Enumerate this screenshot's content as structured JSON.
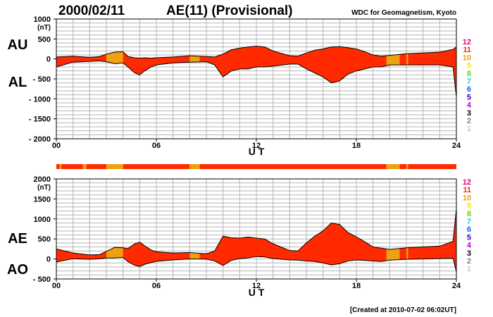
{
  "header": {
    "date": "2000/02/11",
    "title": "AE(11) (Provisional)",
    "source": "WDC for Geomagnetism, Kyoto"
  },
  "footer": {
    "created": "[Created at 2010-07-02 06:02UT]"
  },
  "colors": {
    "primary": "#ff2a00",
    "secondary": "#f0a010",
    "line": "#000000",
    "grid": "#b4b4b4"
  },
  "legend": {
    "items": [
      {
        "label": "12",
        "color": "#e0007a"
      },
      {
        "label": "11",
        "color": "#ff2a00"
      },
      {
        "label": "10",
        "color": "#f0a010"
      },
      {
        "label": "9",
        "color": "#f0f000"
      },
      {
        "label": "8",
        "color": "#5ae000"
      },
      {
        "label": "7",
        "color": "#00d8e8"
      },
      {
        "label": "6",
        "color": "#0064ff"
      },
      {
        "label": "5",
        "color": "#3000c0"
      },
      {
        "label": "4",
        "color": "#c000e0"
      },
      {
        "label": "3",
        "color": "#000000"
      },
      {
        "label": "2",
        "color": "#808080"
      },
      {
        "label": "1",
        "color": "#c8c8c8"
      }
    ]
  },
  "station_count_bar": {
    "segments": [
      {
        "start": 0,
        "end": 0.2,
        "stations": 11
      },
      {
        "start": 0.2,
        "end": 0.3,
        "stations": 10
      },
      {
        "start": 0.3,
        "end": 1.6,
        "stations": 11
      },
      {
        "start": 1.6,
        "end": 1.8,
        "stations": 10
      },
      {
        "start": 1.8,
        "end": 3.0,
        "stations": 11
      },
      {
        "start": 3.0,
        "end": 4.0,
        "stations": 10
      },
      {
        "start": 4.0,
        "end": 8.0,
        "stations": 11
      },
      {
        "start": 8.0,
        "end": 8.6,
        "stations": 10
      },
      {
        "start": 8.6,
        "end": 19.8,
        "stations": 11
      },
      {
        "start": 19.8,
        "end": 20.6,
        "stations": 10
      },
      {
        "start": 20.6,
        "end": 21.0,
        "stations": 11
      },
      {
        "start": 21.0,
        "end": 21.1,
        "stations": 10
      },
      {
        "start": 21.1,
        "end": 24,
        "stations": 11
      }
    ]
  },
  "chart_data": [
    {
      "type": "area",
      "panel": "AU/AL",
      "series_labels": {
        "upper": "AU",
        "lower": "AL"
      },
      "ylabel": "(nT)",
      "xlabel": "U T",
      "ylim": [
        -2000,
        1000
      ],
      "yticks": [
        1000,
        500,
        0,
        -500,
        -1000,
        -1500,
        -2000
      ],
      "ytick_labels": [
        "1000",
        "500",
        "0",
        "- 500",
        "- 1000",
        "- 1500",
        "- 2000"
      ],
      "xlim": [
        0,
        24
      ],
      "xticks": [
        0,
        6,
        12,
        18,
        24
      ],
      "xtick_labels": [
        "00",
        "06",
        "12",
        "18",
        "24"
      ],
      "grid": true,
      "secondary_intervals": [
        [
          3.0,
          4.0
        ],
        [
          8.0,
          8.6
        ],
        [
          19.8,
          20.6
        ],
        [
          21.0,
          21.1
        ]
      ],
      "x": [
        0,
        1,
        2,
        2.6,
        3,
        3.5,
        4,
        4.3,
        4.7,
        5,
        5.3,
        5.7,
        6,
        7,
        8,
        9,
        9.5,
        10,
        10.5,
        11,
        11.5,
        12,
        12.5,
        13,
        14,
        14.5,
        15,
        15.5,
        16,
        16.5,
        17,
        17.5,
        18,
        18.5,
        19,
        19.5,
        20,
        21,
        22,
        23,
        23.8,
        24
      ],
      "upper": [
        50,
        70,
        40,
        60,
        120,
        170,
        180,
        60,
        30,
        20,
        30,
        20,
        30,
        50,
        80,
        60,
        50,
        120,
        230,
        270,
        300,
        320,
        300,
        200,
        80,
        70,
        150,
        220,
        250,
        300,
        310,
        280,
        250,
        180,
        100,
        70,
        90,
        130,
        150,
        170,
        240,
        300
      ],
      "lower": [
        -200,
        -80,
        -60,
        -50,
        -70,
        -120,
        -100,
        -200,
        -350,
        -400,
        -300,
        -200,
        -150,
        -100,
        -80,
        -70,
        -150,
        -450,
        -300,
        -250,
        -250,
        -200,
        -200,
        -180,
        -130,
        -130,
        -250,
        -350,
        -450,
        -600,
        -550,
        -380,
        -300,
        -250,
        -200,
        -200,
        -150,
        -150,
        -150,
        -150,
        -200,
        -950
      ]
    },
    {
      "type": "area",
      "panel": "AE/AO",
      "series_labels": {
        "upper": "AE",
        "lower": "AO"
      },
      "ylabel": "(nT)",
      "xlabel": "U T",
      "ylim": [
        -500,
        2000
      ],
      "yticks": [
        2000,
        1500,
        1000,
        500,
        0,
        -500
      ],
      "ytick_labels": [
        "2000",
        "1500",
        "1000",
        "500",
        "0",
        "- 500"
      ],
      "xlim": [
        0,
        24
      ],
      "xticks": [
        0,
        6,
        12,
        18,
        24
      ],
      "xtick_labels": [
        "00",
        "06",
        "12",
        "18",
        "24"
      ],
      "grid": true,
      "secondary_intervals": [
        [
          3.0,
          4.0
        ],
        [
          8.0,
          8.6
        ],
        [
          19.8,
          20.6
        ],
        [
          21.0,
          21.1
        ]
      ],
      "x": [
        0,
        1,
        2,
        2.6,
        3,
        3.5,
        4,
        4.3,
        4.7,
        5,
        5.3,
        5.7,
        6,
        7,
        8,
        9,
        9.5,
        10,
        10.5,
        11,
        11.5,
        12,
        12.5,
        13,
        14,
        14.5,
        15,
        15.5,
        16,
        16.5,
        17,
        17.5,
        18,
        18.5,
        19,
        19.5,
        20,
        21,
        22,
        23,
        23.8,
        24
      ],
      "upper": [
        250,
        150,
        100,
        110,
        190,
        290,
        280,
        260,
        380,
        420,
        330,
        220,
        180,
        150,
        160,
        130,
        200,
        570,
        530,
        520,
        550,
        520,
        500,
        380,
        210,
        200,
        400,
        570,
        700,
        900,
        860,
        660,
        550,
        430,
        300,
        270,
        240,
        280,
        300,
        320,
        440,
        1250
      ],
      "lower": [
        -75,
        5,
        -10,
        5,
        25,
        25,
        40,
        -70,
        -160,
        -190,
        -135,
        -90,
        -60,
        -25,
        0,
        -5,
        -50,
        -165,
        -35,
        10,
        25,
        60,
        50,
        10,
        -25,
        -30,
        -50,
        -65,
        -100,
        -150,
        -120,
        -50,
        -25,
        -35,
        -50,
        -65,
        -30,
        -10,
        0,
        10,
        20,
        -325
      ]
    }
  ]
}
